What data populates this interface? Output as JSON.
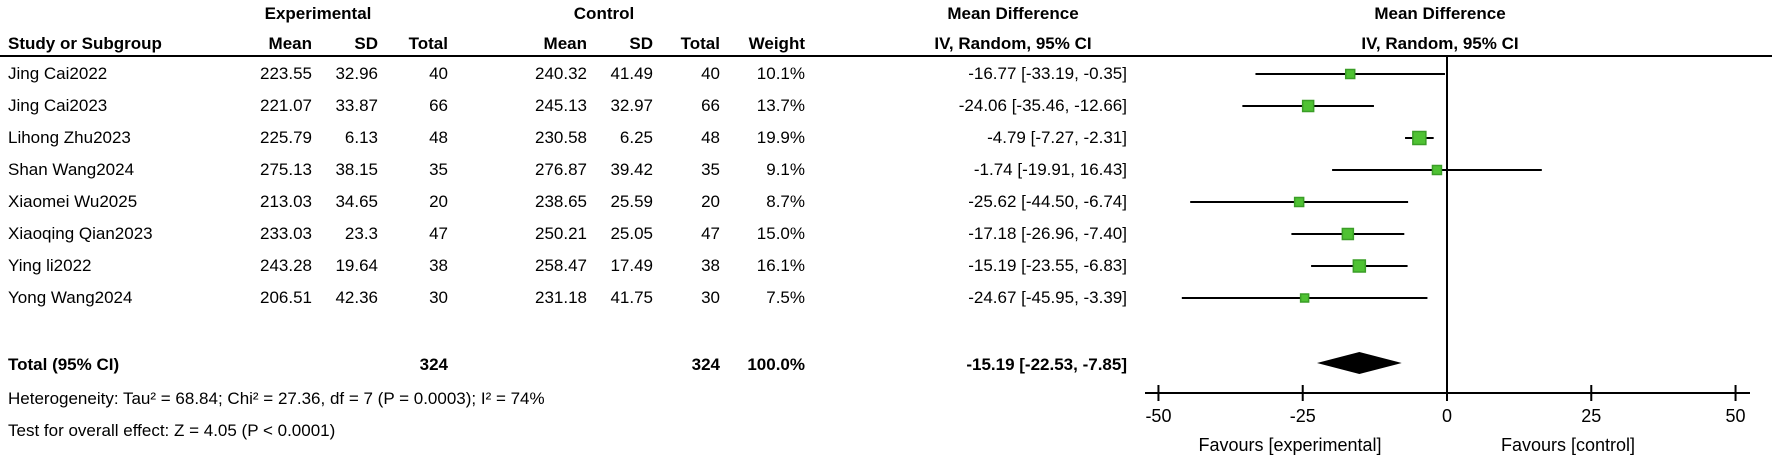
{
  "columns": {
    "group_experimental": "Experimental",
    "group_control": "Control",
    "study": "Study or Subgroup",
    "mean": "Mean",
    "sd": "SD",
    "total": "Total",
    "weight": "Weight",
    "md_title": "Mean Difference",
    "md_method": "IV, Random, 95% CI"
  },
  "chart_data": {
    "type": "scatter",
    "variant": "forest_plot_mean_difference",
    "effect_label": "Mean Difference",
    "method_label": "IV, Random, 95% CI",
    "marker_color": "#4fc233",
    "marker_border": "#3a9e27",
    "diamond_color": "#000000",
    "studies": [
      {
        "name": "Jing Cai2022",
        "exp_mean": "223.55",
        "exp_sd": "32.96",
        "exp_total": "40",
        "ctl_mean": "240.32",
        "ctl_sd": "41.49",
        "ctl_total": "40",
        "weight": "10.1%",
        "weight_pct": 10.1,
        "md": -16.77,
        "ci_low": -33.19,
        "ci_high": -0.35,
        "ci_text": "-16.77 [-33.19, -0.35]"
      },
      {
        "name": "Jing Cai2023",
        "exp_mean": "221.07",
        "exp_sd": "33.87",
        "exp_total": "66",
        "ctl_mean": "245.13",
        "ctl_sd": "32.97",
        "ctl_total": "66",
        "weight": "13.7%",
        "weight_pct": 13.7,
        "md": -24.06,
        "ci_low": -35.46,
        "ci_high": -12.66,
        "ci_text": "-24.06 [-35.46, -12.66]"
      },
      {
        "name": "Lihong Zhu2023",
        "exp_mean": "225.79",
        "exp_sd": "6.13",
        "exp_total": "48",
        "ctl_mean": "230.58",
        "ctl_sd": "6.25",
        "ctl_total": "48",
        "weight": "19.9%",
        "weight_pct": 19.9,
        "md": -4.79,
        "ci_low": -7.27,
        "ci_high": -2.31,
        "ci_text": "-4.79 [-7.27, -2.31]"
      },
      {
        "name": "Shan Wang2024",
        "exp_mean": "275.13",
        "exp_sd": "38.15",
        "exp_total": "35",
        "ctl_mean": "276.87",
        "ctl_sd": "39.42",
        "ctl_total": "35",
        "weight": "9.1%",
        "weight_pct": 9.1,
        "md": -1.74,
        "ci_low": -19.91,
        "ci_high": 16.43,
        "ci_text": "-1.74 [-19.91, 16.43]"
      },
      {
        "name": "Xiaomei Wu2025",
        "exp_mean": "213.03",
        "exp_sd": "34.65",
        "exp_total": "20",
        "ctl_mean": "238.65",
        "ctl_sd": "25.59",
        "ctl_total": "20",
        "weight": "8.7%",
        "weight_pct": 8.7,
        "md": -25.62,
        "ci_low": -44.5,
        "ci_high": -6.74,
        "ci_text": "-25.62 [-44.50, -6.74]"
      },
      {
        "name": "Xiaoqing Qian2023",
        "exp_mean": "233.03",
        "exp_sd": "23.3",
        "exp_total": "47",
        "ctl_mean": "250.21",
        "ctl_sd": "25.05",
        "ctl_total": "47",
        "weight": "15.0%",
        "weight_pct": 15.0,
        "md": -17.18,
        "ci_low": -26.96,
        "ci_high": -7.4,
        "ci_text": "-17.18 [-26.96, -7.40]"
      },
      {
        "name": "Ying li2022",
        "exp_mean": "243.28",
        "exp_sd": "19.64",
        "exp_total": "38",
        "ctl_mean": "258.47",
        "ctl_sd": "17.49",
        "ctl_total": "38",
        "weight": "16.1%",
        "weight_pct": 16.1,
        "md": -15.19,
        "ci_low": -23.55,
        "ci_high": -6.83,
        "ci_text": "-15.19 [-23.55, -6.83]"
      },
      {
        "name": "Yong Wang2024",
        "exp_mean": "206.51",
        "exp_sd": "42.36",
        "exp_total": "30",
        "ctl_mean": "231.18",
        "ctl_sd": "41.75",
        "ctl_total": "30",
        "weight": "7.5%",
        "weight_pct": 7.5,
        "md": -24.67,
        "ci_low": -45.95,
        "ci_high": -3.39,
        "ci_text": "-24.67 [-45.95, -3.39]"
      }
    ],
    "total": {
      "label": "Total (95% CI)",
      "exp_total": "324",
      "ctl_total": "324",
      "weight": "100.0%",
      "md": -15.19,
      "ci_low": -22.53,
      "ci_high": -7.85,
      "ci_text": "-15.19 [-22.53, -7.85]"
    },
    "heterogeneity": "Heterogeneity: Tau² = 68.84; Chi² = 27.36, df = 7 (P = 0.0003); I² = 74%",
    "overall_effect": "Test for overall effect: Z = 4.05 (P < 0.0001)",
    "axis": {
      "min": -50,
      "max": 50,
      "ticks": [
        -50,
        -25,
        0,
        25,
        50
      ],
      "favours_left": "Favours [experimental]",
      "favours_right": "Favours [control]"
    }
  }
}
